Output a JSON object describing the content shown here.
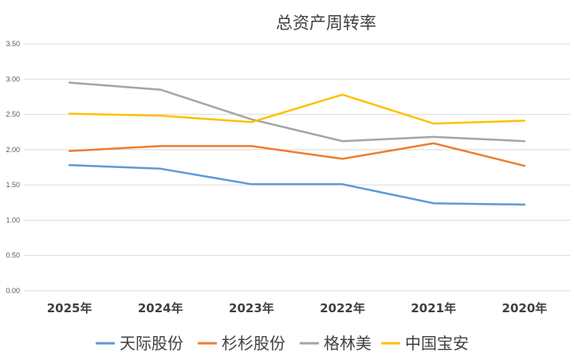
{
  "chart_data": {
    "type": "line",
    "title": "总资产周转率",
    "xlabel": "",
    "ylabel": "",
    "categories": [
      "2025年",
      "2024年",
      "2023年",
      "2022年",
      "2021年",
      "2020年"
    ],
    "ylim": [
      0,
      3.5
    ],
    "yticks": [
      "0.00",
      "0.50",
      "1.00",
      "1.50",
      "2.00",
      "2.50",
      "3.00",
      "3.50"
    ],
    "grid": true,
    "legend_position": "bottom",
    "series": [
      {
        "name": "天际股份",
        "color": "#5b9bd5",
        "values": [
          1.78,
          1.73,
          1.51,
          1.51,
          1.24,
          1.22
        ]
      },
      {
        "name": "杉杉股份",
        "color": "#ed7d31",
        "values": [
          1.98,
          2.05,
          2.05,
          1.87,
          2.09,
          1.77
        ]
      },
      {
        "name": "格林美",
        "color": "#a5a5a5",
        "values": [
          2.95,
          2.85,
          2.43,
          2.12,
          2.18,
          2.12
        ]
      },
      {
        "name": "中国宝安",
        "color": "#ffc000",
        "values": [
          2.51,
          2.48,
          2.39,
          2.78,
          2.37,
          2.41
        ]
      }
    ]
  }
}
